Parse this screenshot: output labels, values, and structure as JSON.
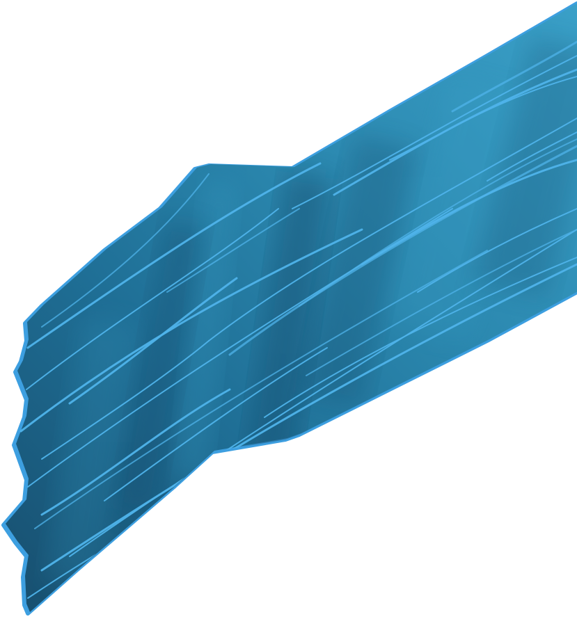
{
  "image": {
    "subject": "water-stream",
    "colors": {
      "background": "#ffffff",
      "water_base": "#1f6f96",
      "water_mid": "#2a86ad",
      "water_light": "#3aa0c8",
      "water_dark": "#174e6e",
      "streak": "#4fb3ea",
      "edge": "#3d9fe0"
    }
  }
}
